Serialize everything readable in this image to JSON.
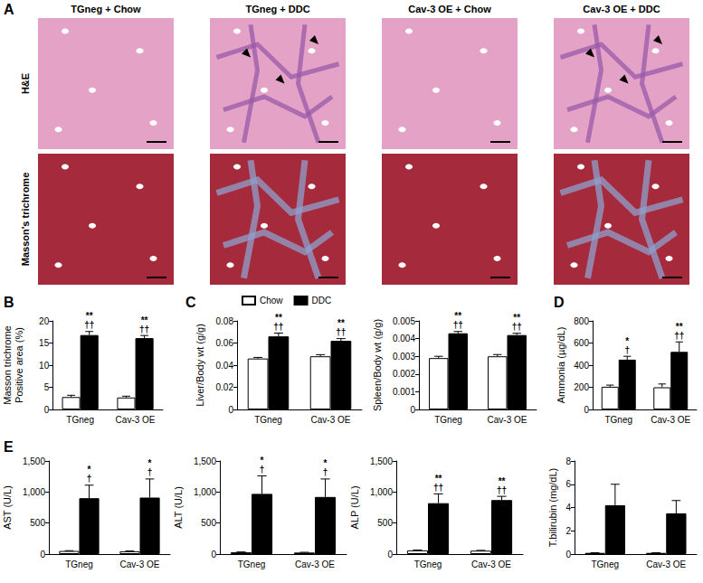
{
  "panel_letters": [
    "A",
    "B",
    "C",
    "D",
    "E"
  ],
  "panel_a": {
    "columns": [
      "TGneg + Chow",
      "TGneg + DDC",
      "Cav-3 OE + Chow",
      "Cav-3 OE + DDC"
    ],
    "rows": [
      "H&E",
      "Masson's trichrome"
    ]
  },
  "chart_data": [
    {
      "type": "bar",
      "ylabel": "Masson trichrome\nPositive area (%)",
      "categories": [
        "TGneg",
        "Cav-3 OE"
      ],
      "ylim": [
        0,
        20
      ],
      "yticks": [
        0,
        5,
        10,
        15,
        20
      ],
      "grid": false,
      "series": [
        {
          "name": "Chow",
          "color": "#ffffff",
          "values": [
            2.8,
            2.7
          ],
          "errors": [
            0.4,
            0.3
          ]
        },
        {
          "name": "DDC",
          "color": "#000000",
          "values": [
            16.8,
            16.1
          ],
          "errors": [
            0.8,
            0.6
          ],
          "annotations": [
            [
              "**",
              "††"
            ],
            [
              "**",
              "††"
            ]
          ]
        }
      ]
    },
    {
      "type": "bar",
      "ylabel": "Liver/Body wt (g/g)",
      "categories": [
        "TGneg",
        "Cav-3 OE"
      ],
      "ylim": [
        0,
        0.08
      ],
      "yticks": [
        0,
        0.02,
        0.04,
        0.06,
        0.08
      ],
      "grid": false,
      "legend": "top",
      "series": [
        {
          "name": "Chow",
          "color": "#ffffff",
          "values": [
            0.046,
            0.048
          ],
          "errors": [
            0.001,
            0.0015
          ]
        },
        {
          "name": "DDC",
          "color": "#000000",
          "values": [
            0.066,
            0.062
          ],
          "errors": [
            0.003,
            0.002
          ],
          "annotations": [
            [
              "**",
              "††"
            ],
            [
              "**",
              "††"
            ]
          ]
        }
      ]
    },
    {
      "type": "bar",
      "ylabel": "Spleen/Body wt (g/g)",
      "categories": [
        "TGneg",
        "Cav-3 OE"
      ],
      "ylim": [
        0,
        0.005
      ],
      "yticks": [
        0,
        0.001,
        0.002,
        0.003,
        0.004,
        0.005
      ],
      "grid": false,
      "series": [
        {
          "name": "Chow",
          "color": "#ffffff",
          "values": [
            0.0029,
            0.003
          ],
          "errors": [
            0.0001,
            0.0001
          ]
        },
        {
          "name": "DDC",
          "color": "#000000",
          "values": [
            0.0043,
            0.0042
          ],
          "errors": [
            0.0001,
            0.0001
          ],
          "annotations": [
            [
              "**",
              "††"
            ],
            [
              "**",
              "††"
            ]
          ]
        }
      ]
    },
    {
      "type": "bar",
      "ylabel": "Ammonia (µg/dL)",
      "categories": [
        "TGneg",
        "Cav-3 OE"
      ],
      "ylim": [
        0,
        800
      ],
      "yticks": [
        0,
        200,
        400,
        600,
        800
      ],
      "grid": false,
      "series": [
        {
          "name": "Chow",
          "color": "#ffffff",
          "values": [
            205,
            200
          ],
          "errors": [
            15,
            30
          ]
        },
        {
          "name": "DDC",
          "color": "#000000",
          "values": [
            450,
            520
          ],
          "errors": [
            30,
            90
          ],
          "annotations": [
            [
              "*",
              "†"
            ],
            [
              "**",
              "††"
            ]
          ]
        }
      ]
    },
    {
      "type": "bar",
      "ylabel": "AST (U/L)",
      "categories": [
        "TGneg",
        "Cav-3 OE"
      ],
      "ylim": [
        0,
        1500
      ],
      "yticks": [
        0,
        500,
        {
          "value": 1000,
          "label": "1,000"
        },
        {
          "value": 1500,
          "label": "1,500"
        }
      ],
      "grid": false,
      "series": [
        {
          "name": "Chow",
          "color": "#ffffff",
          "values": [
            50,
            45
          ],
          "errors": [
            5,
            5
          ]
        },
        {
          "name": "DDC",
          "color": "#000000",
          "values": [
            900,
            910
          ],
          "errors": [
            210,
            300
          ],
          "annotations": [
            [
              "*",
              "†"
            ],
            [
              "*",
              "†"
            ]
          ]
        }
      ]
    },
    {
      "type": "bar",
      "ylabel": "ALT (U/L)",
      "categories": [
        "TGneg",
        "Cav-3 OE"
      ],
      "ylim": [
        0,
        1500
      ],
      "yticks": [
        0,
        500,
        {
          "value": 1000,
          "label": "1,000"
        },
        {
          "value": 1500,
          "label": "1,500"
        }
      ],
      "grid": false,
      "series": [
        {
          "name": "Chow",
          "color": "#ffffff",
          "values": [
            30,
            25
          ],
          "errors": [
            4,
            4
          ]
        },
        {
          "name": "DDC",
          "color": "#000000",
          "values": [
            970,
            920
          ],
          "errors": [
            290,
            290
          ],
          "annotations": [
            [
              "*",
              "†"
            ],
            [
              "*",
              "†"
            ]
          ]
        }
      ]
    },
    {
      "type": "bar",
      "ylabel": "ALP (U/L)",
      "categories": [
        "TGneg",
        "Cav-3 OE"
      ],
      "ylim": [
        0,
        1500
      ],
      "yticks": [
        0,
        500,
        {
          "value": 1000,
          "label": "1,000"
        },
        {
          "value": 1500,
          "label": "1,500"
        }
      ],
      "grid": false,
      "series": [
        {
          "name": "Chow",
          "color": "#ffffff",
          "values": [
            60,
            55
          ],
          "errors": [
            5,
            5
          ]
        },
        {
          "name": "DDC",
          "color": "#000000",
          "values": [
            820,
            870
          ],
          "errors": [
            150,
            60
          ],
          "annotations": [
            [
              "**",
              "††"
            ],
            [
              "**",
              "††"
            ]
          ]
        }
      ]
    },
    {
      "type": "bar",
      "ylabel": "T.bilirubin (mg/dL)",
      "categories": [
        "TGneg",
        "Cav-3 OE"
      ],
      "ylim": [
        0,
        8
      ],
      "yticks": [
        0,
        2,
        4,
        6,
        8
      ],
      "grid": false,
      "series": [
        {
          "name": "Chow",
          "color": "#ffffff",
          "values": [
            0.1,
            0.1
          ],
          "errors": [
            0.02,
            0.02
          ]
        },
        {
          "name": "DDC",
          "color": "#000000",
          "values": [
            4.2,
            3.5
          ],
          "errors": [
            1.8,
            1.1
          ]
        }
      ]
    }
  ]
}
